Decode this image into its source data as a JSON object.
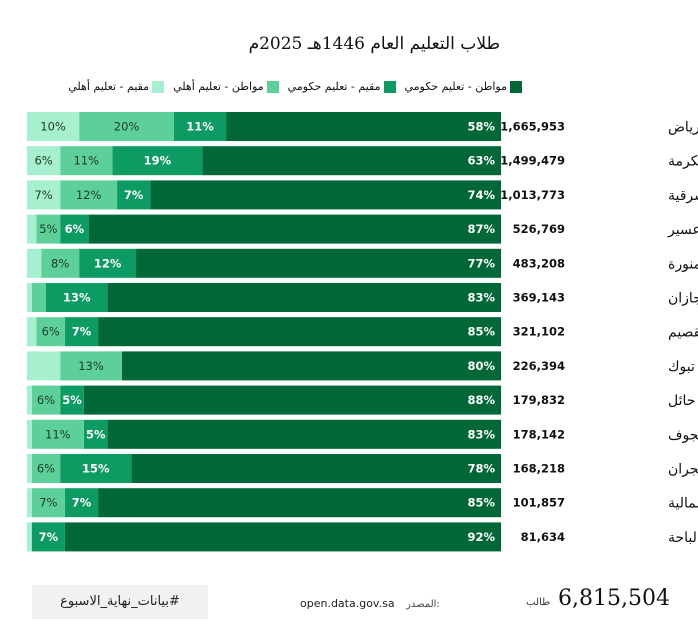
{
  "title": "طلاب التعليم العام  1446هـ 2025م",
  "legend": [
    {
      "label": "مواطن - تعليم حكومي",
      "color": "#006837"
    },
    {
      "label": "مقيم - تعليم حكومي",
      "color": "#0c9b62"
    },
    {
      "label": "مواطن - تعليم أهلي",
      "color": "#5dd09a"
    },
    {
      "label": "مقيم - تعليم أهلي",
      "color": "#a6f0d0"
    }
  ],
  "chart_data": {
    "type": "bar",
    "orientation": "horizontal",
    "stacked": true,
    "normalized": true,
    "categories": [
      "الرياض",
      "مكة المكرمة",
      "الشرقية",
      "عسير",
      "المدينة المنورة",
      "جازان",
      "القصيم",
      "تبوك",
      "حائل",
      "الجوف",
      "نجران",
      "الحدود الشمالية",
      "الباحة"
    ],
    "totals": [
      "1,665,953",
      "1,499,479",
      "1,013,773",
      "526,769",
      "483,208",
      "369,143",
      "321,102",
      "226,394",
      "179,832",
      "178,142",
      "168,218",
      "101,857",
      "81,634"
    ],
    "series": [
      {
        "name": "مواطن - تعليم حكومي",
        "color": "#006837",
        "values": [
          58,
          63,
          74,
          87,
          77,
          83,
          85,
          80,
          88,
          83,
          78,
          85,
          92
        ]
      },
      {
        "name": "مقيم - تعليم حكومي",
        "color": "#0c9b62",
        "values": [
          11,
          19,
          7,
          6,
          12,
          13,
          7,
          0,
          5,
          5,
          15,
          7,
          7
        ]
      },
      {
        "name": "مواطن - تعليم أهلي",
        "color": "#5dd09a",
        "values": [
          20,
          11,
          12,
          5,
          8,
          3,
          6,
          13,
          6,
          11,
          6,
          7,
          0
        ]
      },
      {
        "name": "مقيم - تعليم أهلي",
        "color": "#a6f0d0",
        "values": [
          10,
          6,
          7,
          2,
          3,
          1,
          2,
          1,
          1,
          1,
          1,
          1,
          1
        ]
      }
    ],
    "xlim": [
      0,
      100
    ],
    "label_min_percent": 5,
    "unit": "%"
  },
  "footer": {
    "hashtag": "#بيانات_نهاية_الاسبوع",
    "source_label": "المصدر:",
    "source_url": "open.data.gov.sa",
    "total_value": "6,815,504",
    "total_unit": "طالب"
  }
}
